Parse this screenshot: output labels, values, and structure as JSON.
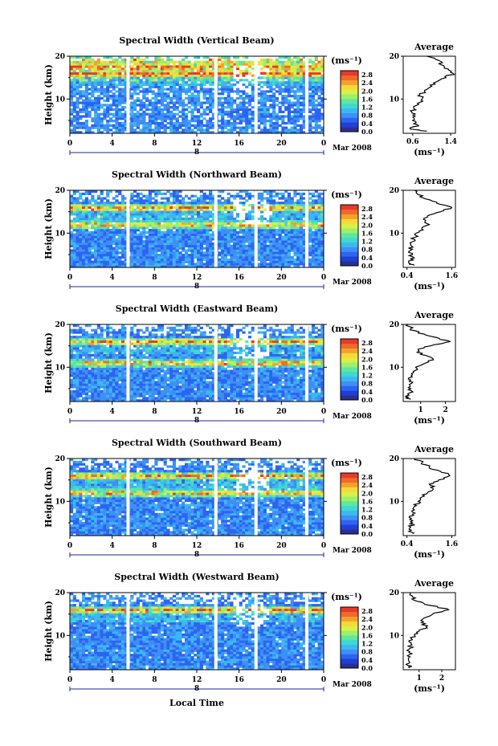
{
  "figure": {
    "xlabel": "Local Time",
    "date_label": "Mar 2008",
    "day_label": "8",
    "colorbar_unit": "(ms⁻¹)",
    "average_title": "Average",
    "average_xunit": "(ms⁻¹)",
    "ylabel": "Height (km)"
  },
  "colors": {
    "colormap": [
      "#2b2f8f",
      "#1f3fd6",
      "#2c64f2",
      "#3f8ff5",
      "#3cb8f0",
      "#3fd8d2",
      "#5fe6a0",
      "#9cf06a",
      "#d9f046",
      "#f5d83a",
      "#f5a02e",
      "#f06a2a",
      "#e63a2a"
    ],
    "background": "#ffffff",
    "profile_line": "#000000"
  },
  "chart_data": [
    {
      "type": "heatmap",
      "title": "Spectral Width (Vertical Beam)",
      "x_ticks": [
        "0",
        "4",
        "8",
        "12",
        "16",
        "20",
        "0"
      ],
      "y_ticks": [
        "10",
        "20"
      ],
      "xlim": [
        0,
        24
      ],
      "ylim": [
        2,
        20
      ],
      "colorbar_ticks": [
        "2.8",
        "2.4",
        "2.0",
        "1.6",
        "1.2",
        "0.8",
        "0.4",
        "0.0"
      ],
      "colorbar_range": [
        0,
        3.0
      ],
      "data_gaps_hours": [
        5.5,
        13.8,
        17.6,
        22.4
      ],
      "enhanced_layers_km": [
        16,
        17.5,
        19
      ],
      "average_profile": {
        "x_ticks": [
          "0.6",
          "1.4"
        ],
        "xlim": [
          0.4,
          1.5
        ],
        "heights_km": [
          2.5,
          3,
          4,
          5,
          6,
          7,
          8,
          9,
          10,
          11,
          12,
          13,
          14,
          15,
          16,
          17,
          18,
          19,
          20
        ],
        "values": [
          0.9,
          0.55,
          0.7,
          0.6,
          0.65,
          0.58,
          0.62,
          0.7,
          0.8,
          0.75,
          0.85,
          1.0,
          1.1,
          1.3,
          1.45,
          1.35,
          1.2,
          1.15,
          0.9
        ]
      }
    },
    {
      "type": "heatmap",
      "title": "Spectral Width (Northward Beam)",
      "x_ticks": [
        "0",
        "4",
        "8",
        "12",
        "16",
        "20",
        "0"
      ],
      "y_ticks": [
        "10",
        "20"
      ],
      "xlim": [
        0,
        24
      ],
      "ylim": [
        2,
        20
      ],
      "colorbar_ticks": [
        "2.8",
        "2.4",
        "2.0",
        "1.6",
        "1.2",
        "0.8",
        "0.4",
        "0.0"
      ],
      "colorbar_range": [
        0,
        3.0
      ],
      "data_gaps_hours": [
        5.5,
        13.8,
        17.6,
        22.4
      ],
      "enhanced_layers_km": [
        12,
        16
      ],
      "average_profile": {
        "x_ticks": [
          "0.4",
          "1.6"
        ],
        "xlim": [
          0.3,
          1.7
        ],
        "heights_km": [
          2.5,
          3,
          4,
          5,
          6,
          7,
          8,
          9,
          10,
          11,
          12,
          13,
          14,
          15,
          16,
          17,
          18,
          19,
          20
        ],
        "values": [
          0.6,
          0.45,
          0.5,
          0.55,
          0.5,
          0.52,
          0.55,
          0.6,
          0.65,
          0.8,
          1.0,
          0.9,
          0.95,
          1.3,
          1.6,
          1.2,
          0.9,
          0.7,
          0.6
        ]
      }
    },
    {
      "type": "heatmap",
      "title": "Spectral Width (Eastward Beam)",
      "x_ticks": [
        "0",
        "4",
        "8",
        "12",
        "16",
        "20",
        "0"
      ],
      "y_ticks": [
        "10",
        "20"
      ],
      "xlim": [
        0,
        24
      ],
      "ylim": [
        2,
        20
      ],
      "colorbar_ticks": [
        "2.8",
        "2.4",
        "2.0",
        "1.6",
        "1.2",
        "0.8",
        "0.4",
        "0.0"
      ],
      "colorbar_range": [
        0,
        3.0
      ],
      "data_gaps_hours": [
        5.5,
        13.8,
        17.6,
        22.4
      ],
      "enhanced_layers_km": [
        11,
        16
      ],
      "average_profile": {
        "x_ticks": [
          "1",
          "2"
        ],
        "xlim": [
          0.3,
          2.4
        ],
        "heights_km": [
          2.5,
          3,
          4,
          5,
          6,
          7,
          8,
          9,
          10,
          11,
          12,
          13,
          14,
          15,
          16,
          17,
          18,
          19,
          20
        ],
        "values": [
          0.6,
          0.5,
          0.55,
          0.6,
          0.55,
          0.6,
          0.62,
          0.7,
          0.8,
          1.2,
          1.5,
          1.0,
          0.9,
          1.4,
          2.2,
          1.6,
          0.9,
          0.6,
          0.5
        ]
      }
    },
    {
      "type": "heatmap",
      "title": "Spectral Width (Southward Beam)",
      "x_ticks": [
        "0",
        "4",
        "8",
        "12",
        "16",
        "20",
        "0"
      ],
      "y_ticks": [
        "10",
        "20"
      ],
      "xlim": [
        0,
        24
      ],
      "ylim": [
        2,
        20
      ],
      "colorbar_ticks": [
        "2.8",
        "2.4",
        "2.0",
        "1.6",
        "1.2",
        "0.8",
        "0.4",
        "0.0"
      ],
      "colorbar_range": [
        0,
        3.0
      ],
      "data_gaps_hours": [
        5.5,
        13.8,
        17.6,
        22.4
      ],
      "enhanced_layers_km": [
        12,
        16
      ],
      "average_profile": {
        "x_ticks": [
          "0.4",
          "1.6"
        ],
        "xlim": [
          0.3,
          1.7
        ],
        "heights_km": [
          2.5,
          3,
          4,
          5,
          6,
          7,
          8,
          9,
          10,
          11,
          12,
          13,
          14,
          15,
          16,
          17,
          18,
          19,
          20
        ],
        "values": [
          0.55,
          0.45,
          0.5,
          0.55,
          0.52,
          0.55,
          0.6,
          0.65,
          0.7,
          0.8,
          0.95,
          1.1,
          1.0,
          1.25,
          1.55,
          1.3,
          1.0,
          0.8,
          0.6
        ]
      }
    },
    {
      "type": "heatmap",
      "title": "Spectral Width (Westward Beam)",
      "x_ticks": [
        "0",
        "4",
        "8",
        "12",
        "16",
        "20",
        "0"
      ],
      "y_ticks": [
        "10",
        "20"
      ],
      "xlim": [
        0,
        24
      ],
      "ylim": [
        2,
        20
      ],
      "colorbar_ticks": [
        "2.8",
        "2.4",
        "2.0",
        "1.6",
        "1.2",
        "0.8",
        "0.4",
        "0.0"
      ],
      "colorbar_range": [
        0,
        3.0
      ],
      "data_gaps_hours": [
        5.5,
        13.8,
        17.6,
        22.4
      ],
      "enhanced_layers_km": [
        16
      ],
      "average_profile": {
        "x_ticks": [
          "1",
          "2"
        ],
        "xlim": [
          0.3,
          2.6
        ],
        "heights_km": [
          2.5,
          3,
          4,
          5,
          6,
          7,
          8,
          9,
          10,
          11,
          12,
          13,
          14,
          15,
          16,
          17,
          18,
          19,
          20
        ],
        "values": [
          0.6,
          0.5,
          0.55,
          0.6,
          0.55,
          0.6,
          0.65,
          0.7,
          0.8,
          1.0,
          1.3,
          1.1,
          1.2,
          1.6,
          2.3,
          1.5,
          0.9,
          0.7,
          0.6
        ]
      }
    }
  ]
}
